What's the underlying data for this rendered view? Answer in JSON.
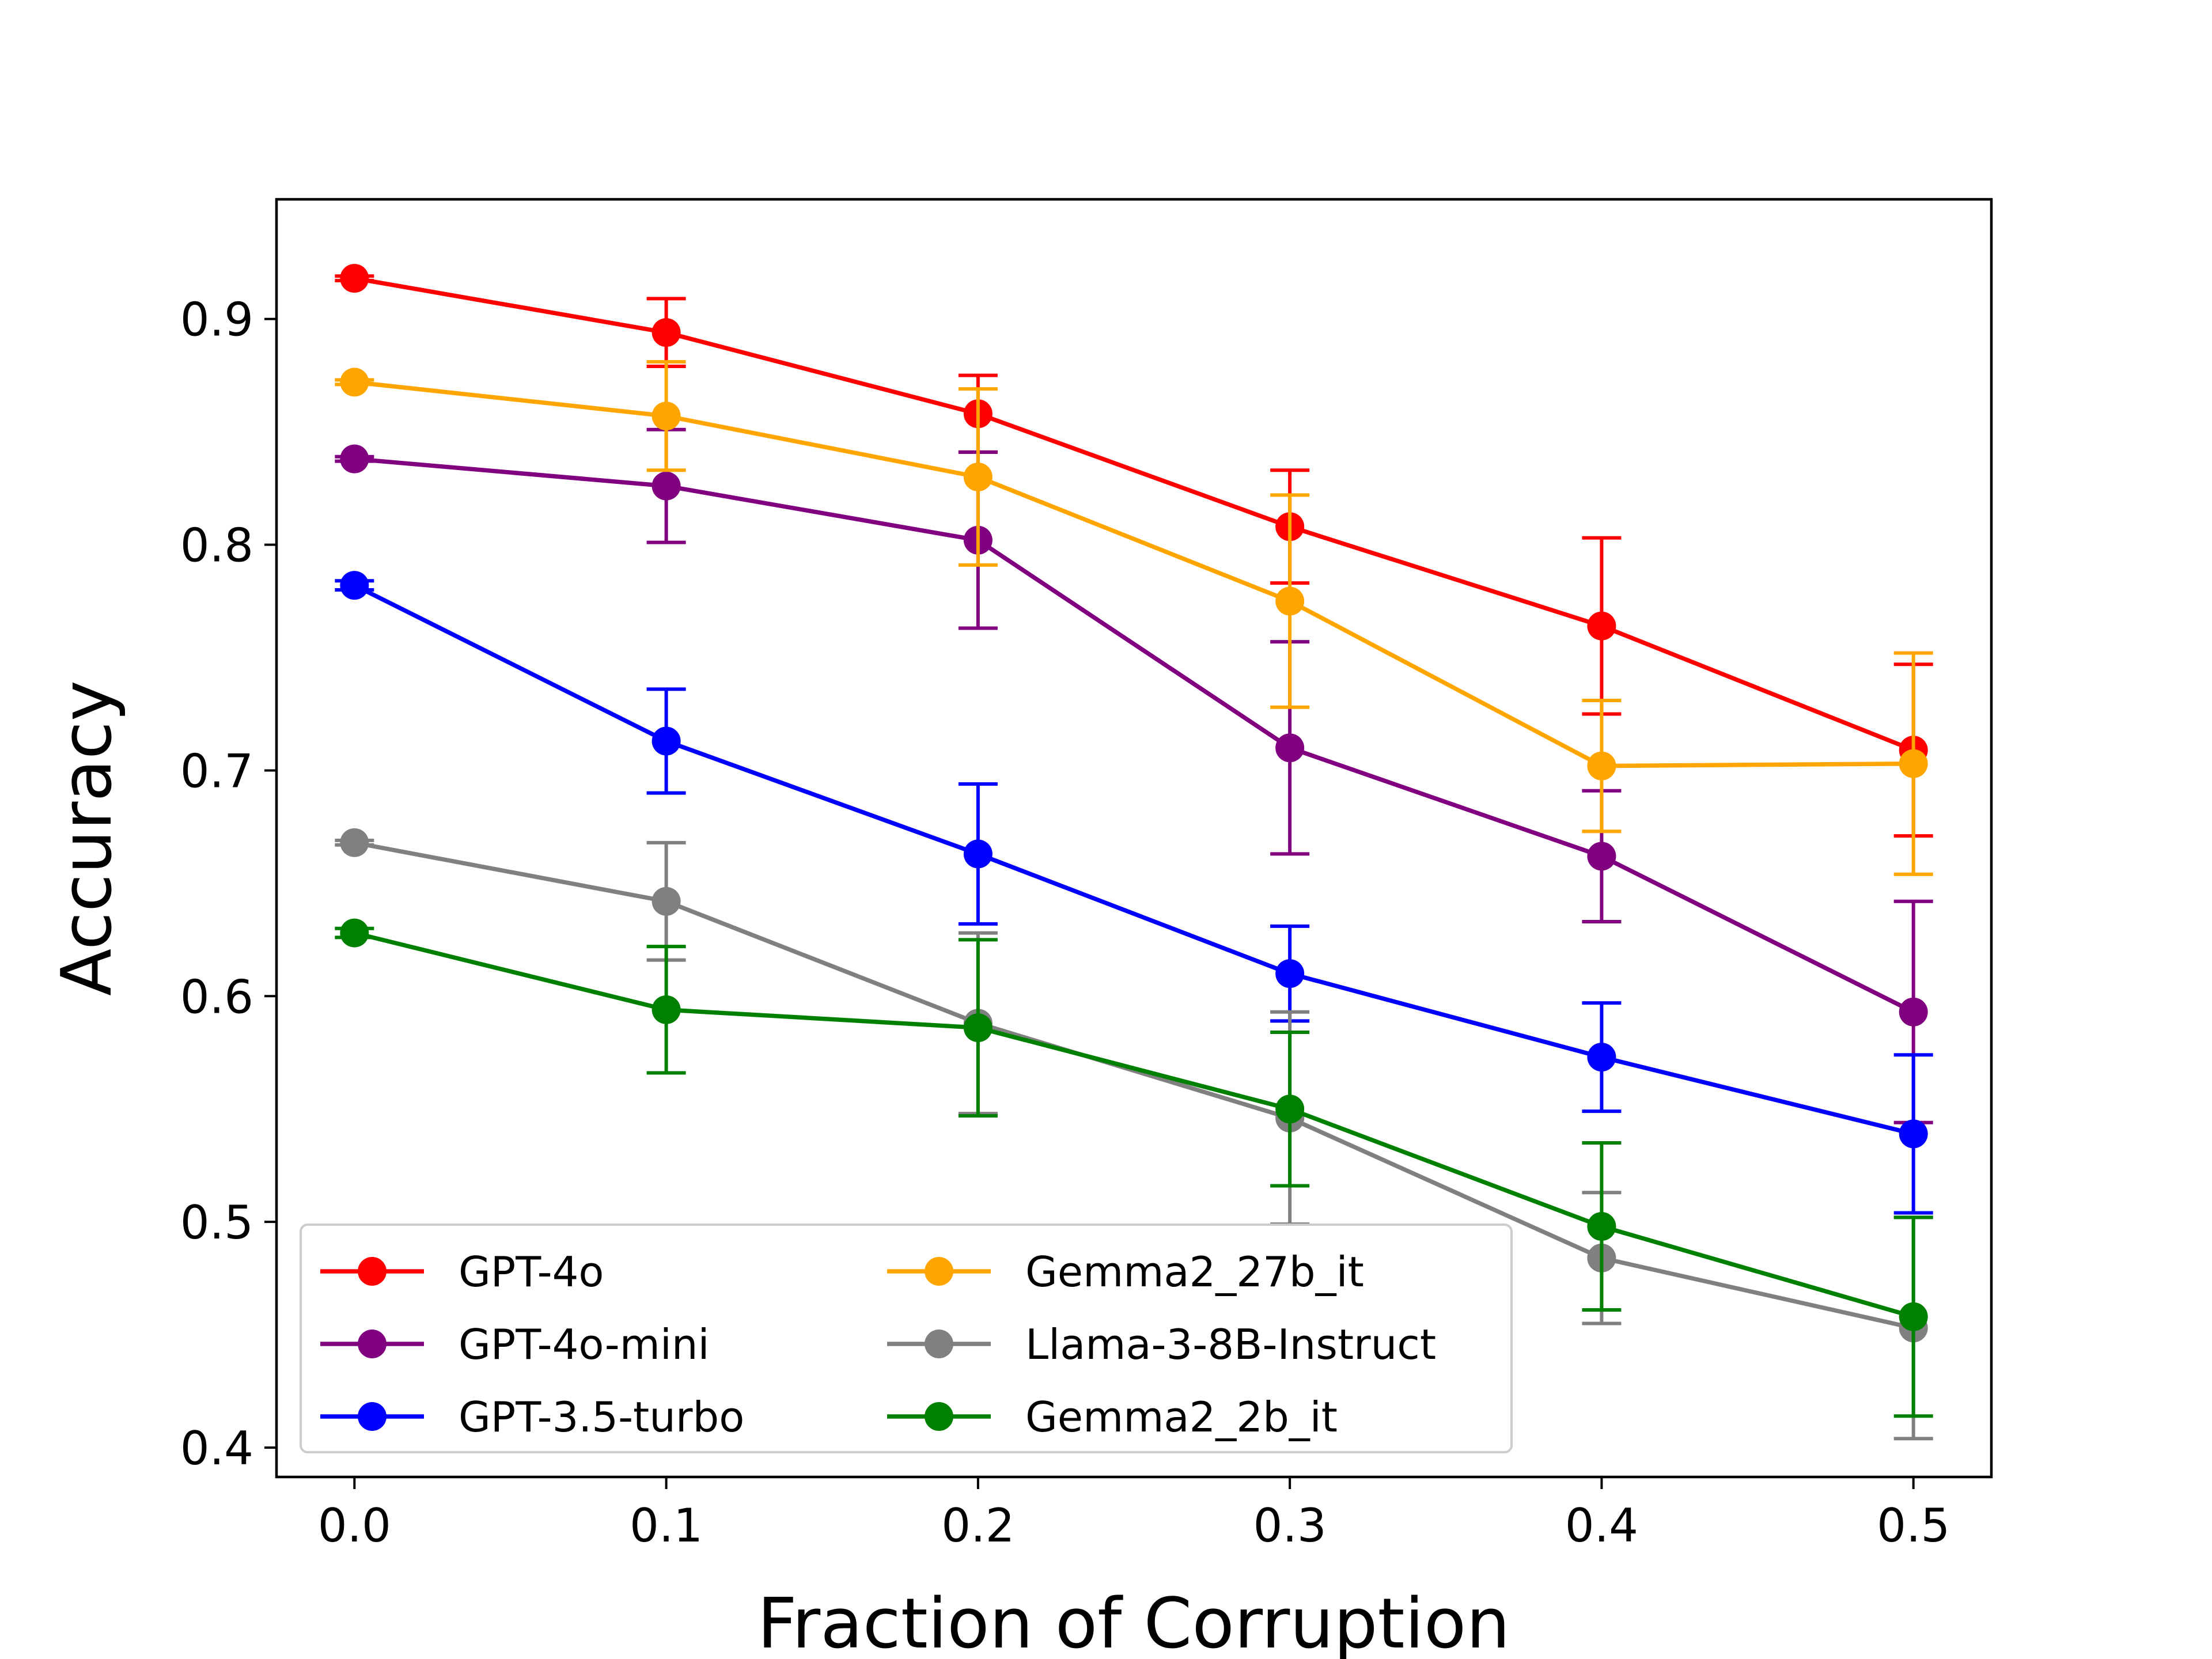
{
  "chart_data": {
    "type": "line",
    "title": "",
    "xlabel": "Fraction of Corruption",
    "ylabel": "Accuracy",
    "x": [
      0.0,
      0.1,
      0.2,
      0.3,
      0.4,
      0.5
    ],
    "xlim": [
      -0.025,
      0.525
    ],
    "ylim": [
      0.387,
      0.953
    ],
    "xticks": [
      0.0,
      0.1,
      0.2,
      0.3,
      0.4,
      0.5
    ],
    "xtick_labels": [
      "0.0",
      "0.1",
      "0.2",
      "0.3",
      "0.4",
      "0.5"
    ],
    "yticks": [
      0.4,
      0.5,
      0.6,
      0.7,
      0.8,
      0.9
    ],
    "ytick_labels": [
      "0.4",
      "0.5",
      "0.6",
      "0.7",
      "0.8",
      "0.9"
    ],
    "grid": false,
    "legend_position": "lower-left",
    "series": [
      {
        "name": "GPT-4o",
        "color": "#ff0000",
        "values": [
          0.918,
          0.894,
          0.858,
          0.808,
          0.764,
          0.709
        ],
        "errors": [
          0.001,
          0.015,
          0.017,
          0.025,
          0.039,
          0.038
        ]
      },
      {
        "name": "GPT-4o-mini",
        "color": "#800080",
        "values": [
          0.838,
          0.826,
          0.802,
          0.71,
          0.662,
          0.593
        ],
        "errors": [
          0.001,
          0.025,
          0.039,
          0.047,
          0.029,
          0.049
        ]
      },
      {
        "name": "GPT-3.5-turbo",
        "color": "#0000ff",
        "values": [
          0.782,
          0.713,
          0.663,
          0.61,
          0.573,
          0.539
        ],
        "errors": [
          0.002,
          0.023,
          0.031,
          0.021,
          0.024,
          0.035
        ]
      },
      {
        "name": "Gemma2_27b_it",
        "color": "#ffa500",
        "values": [
          0.872,
          0.857,
          0.83,
          0.775,
          0.702,
          0.703
        ],
        "errors": [
          0.001,
          0.024,
          0.039,
          0.047,
          0.029,
          0.049
        ]
      },
      {
        "name": "Llama-3-8B-Instruct",
        "color": "#808080",
        "values": [
          0.668,
          0.642,
          0.588,
          0.546,
          0.484,
          0.453
        ],
        "errors": [
          0.001,
          0.026,
          0.04,
          0.047,
          0.029,
          0.049
        ]
      },
      {
        "name": "Gemma2_2b_it",
        "color": "#008000",
        "values": [
          0.628,
          0.594,
          0.586,
          0.55,
          0.498,
          0.458
        ],
        "errors": [
          0.002,
          0.028,
          0.039,
          0.034,
          0.037,
          0.044
        ]
      }
    ]
  }
}
